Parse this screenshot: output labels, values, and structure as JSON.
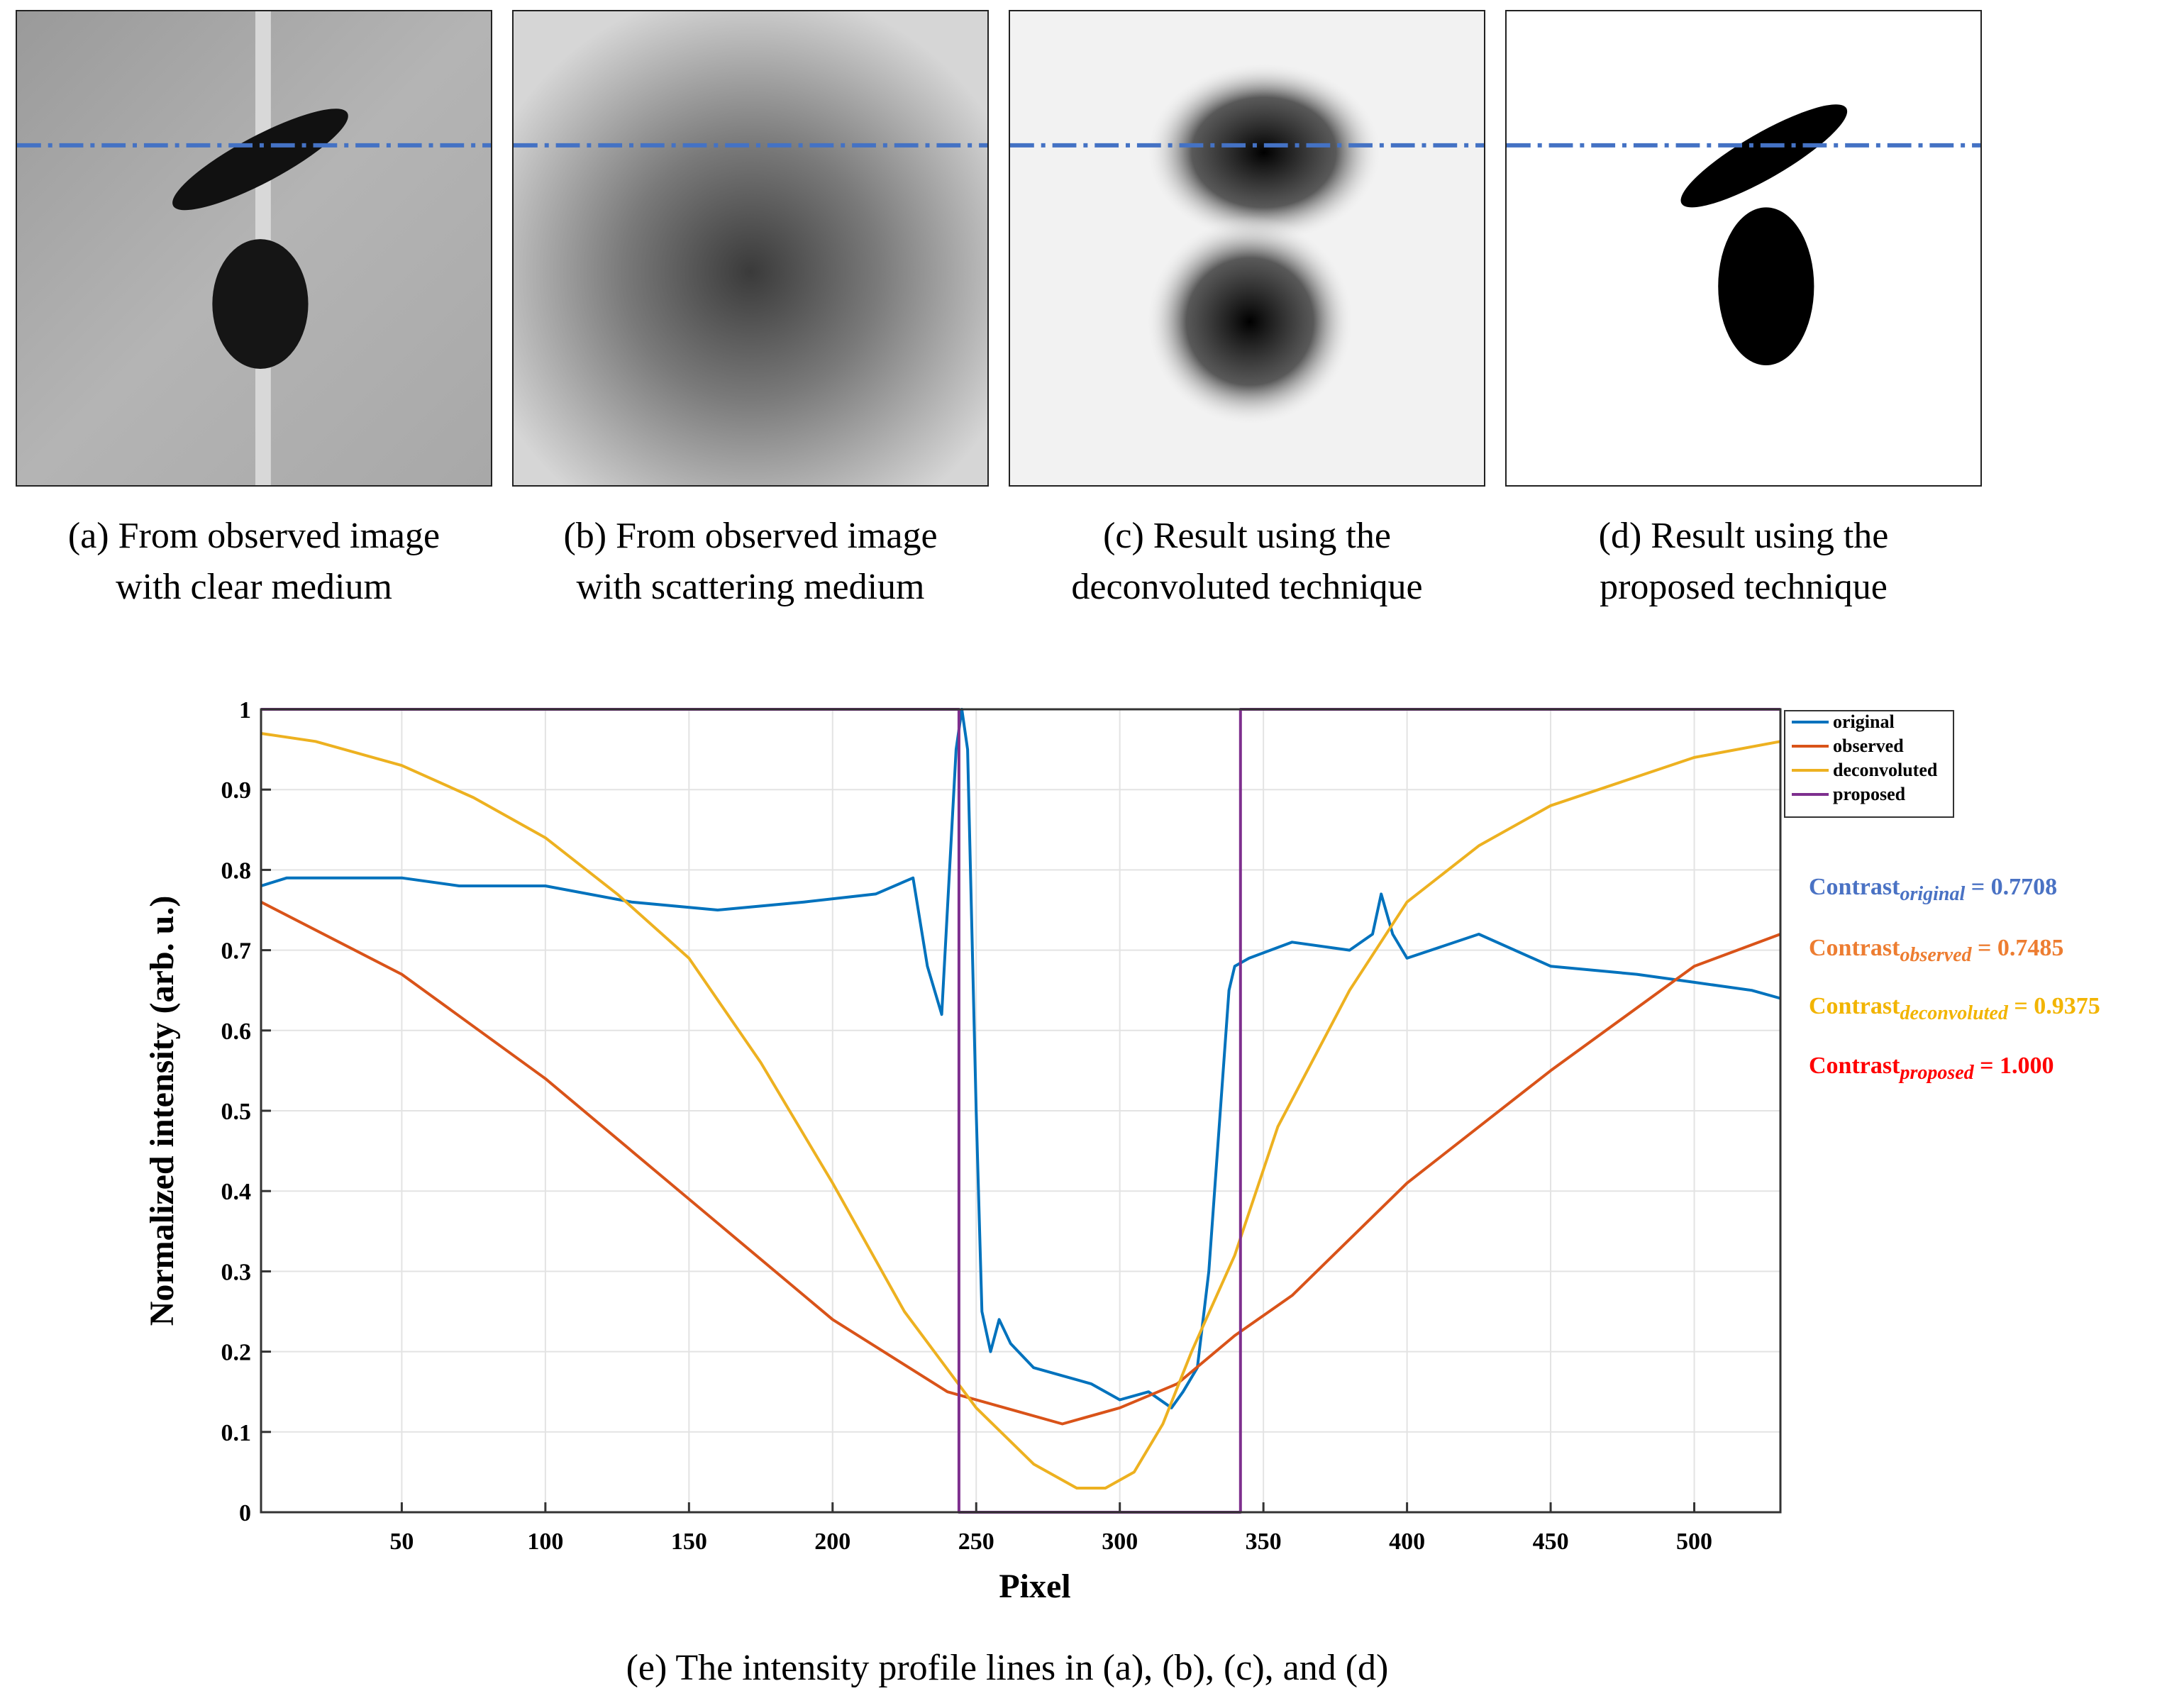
{
  "panels": [
    {
      "caption_line1": "(a) From observed image",
      "caption_line2": "with clear medium"
    },
    {
      "caption_line1": "(b) From observed image",
      "caption_line2": "with scattering medium"
    },
    {
      "caption_line1": "(c) Result using the",
      "caption_line2": "deconvoluted technique"
    },
    {
      "caption_line1": "(d) Result using the",
      "caption_line2": "proposed technique"
    }
  ],
  "bottom_caption": "(e) The intensity profile lines in (a), (b), (c), and (d)",
  "contrasts": [
    {
      "label": "Contrast",
      "sub": "original",
      "value": "= 0.7708",
      "color": "#4a72c4"
    },
    {
      "label": "Contrast",
      "sub": "observed",
      "value": "= 0.7485",
      "color": "#ed7d31"
    },
    {
      "label": "Contrast",
      "sub": "deconvoluted",
      "value": "= 0.9375",
      "color": "#f2b400"
    },
    {
      "label": "Contrast",
      "sub": "proposed",
      "value": "= 1.000",
      "color": "#ff0000"
    }
  ],
  "chart_data": {
    "type": "line",
    "xlabel": "Pixel",
    "ylabel": "Normalized intensity (arb. u.)",
    "xlim": [
      1,
      530
    ],
    "ylim": [
      0,
      1
    ],
    "xticks": [
      50,
      100,
      150,
      200,
      250,
      300,
      350,
      400,
      450,
      500
    ],
    "yticks": [
      0,
      0.1,
      0.2,
      0.3,
      0.4,
      0.5,
      0.6,
      0.7,
      0.8,
      0.9,
      1
    ],
    "grid": true,
    "legend_position": "top-right",
    "series": [
      {
        "name": "original",
        "color": "#0072bd",
        "x": [
          1,
          10,
          30,
          50,
          70,
          100,
          130,
          160,
          190,
          215,
          228,
          233,
          238,
          243,
          245,
          247,
          250,
          252,
          255,
          258,
          262,
          270,
          280,
          290,
          300,
          310,
          318,
          322,
          327,
          331,
          335,
          338,
          340,
          345,
          360,
          380,
          388,
          391,
          395,
          400,
          425,
          450,
          480,
          500,
          520,
          530
        ],
        "y": [
          0.78,
          0.79,
          0.79,
          0.79,
          0.78,
          0.78,
          0.76,
          0.75,
          0.76,
          0.77,
          0.79,
          0.68,
          0.62,
          0.95,
          1.0,
          0.95,
          0.5,
          0.25,
          0.2,
          0.24,
          0.21,
          0.18,
          0.17,
          0.16,
          0.14,
          0.15,
          0.13,
          0.15,
          0.18,
          0.3,
          0.5,
          0.65,
          0.68,
          0.69,
          0.71,
          0.7,
          0.72,
          0.77,
          0.72,
          0.69,
          0.72,
          0.68,
          0.67,
          0.66,
          0.65,
          0.64
        ]
      },
      {
        "name": "observed",
        "color": "#d95319",
        "x": [
          1,
          50,
          100,
          150,
          200,
          240,
          260,
          280,
          300,
          320,
          340,
          360,
          400,
          450,
          500,
          530
        ],
        "y": [
          0.76,
          0.67,
          0.54,
          0.39,
          0.24,
          0.15,
          0.13,
          0.11,
          0.13,
          0.16,
          0.22,
          0.27,
          0.41,
          0.55,
          0.68,
          0.72
        ]
      },
      {
        "name": "deconvoluted",
        "color": "#edb120",
        "x": [
          1,
          20,
          50,
          75,
          100,
          125,
          150,
          175,
          200,
          225,
          250,
          270,
          285,
          295,
          305,
          315,
          325,
          340,
          355,
          380,
          400,
          425,
          450,
          475,
          500,
          530
        ],
        "y": [
          0.97,
          0.96,
          0.93,
          0.89,
          0.84,
          0.77,
          0.69,
          0.56,
          0.41,
          0.25,
          0.13,
          0.06,
          0.03,
          0.03,
          0.05,
          0.11,
          0.2,
          0.32,
          0.48,
          0.65,
          0.76,
          0.83,
          0.88,
          0.91,
          0.94,
          0.96
        ]
      },
      {
        "name": "proposed",
        "color": "#7e2f8e",
        "x": [
          1,
          244,
          244,
          342,
          342,
          530
        ],
        "y": [
          1,
          1,
          0,
          0,
          1,
          1
        ]
      }
    ]
  }
}
